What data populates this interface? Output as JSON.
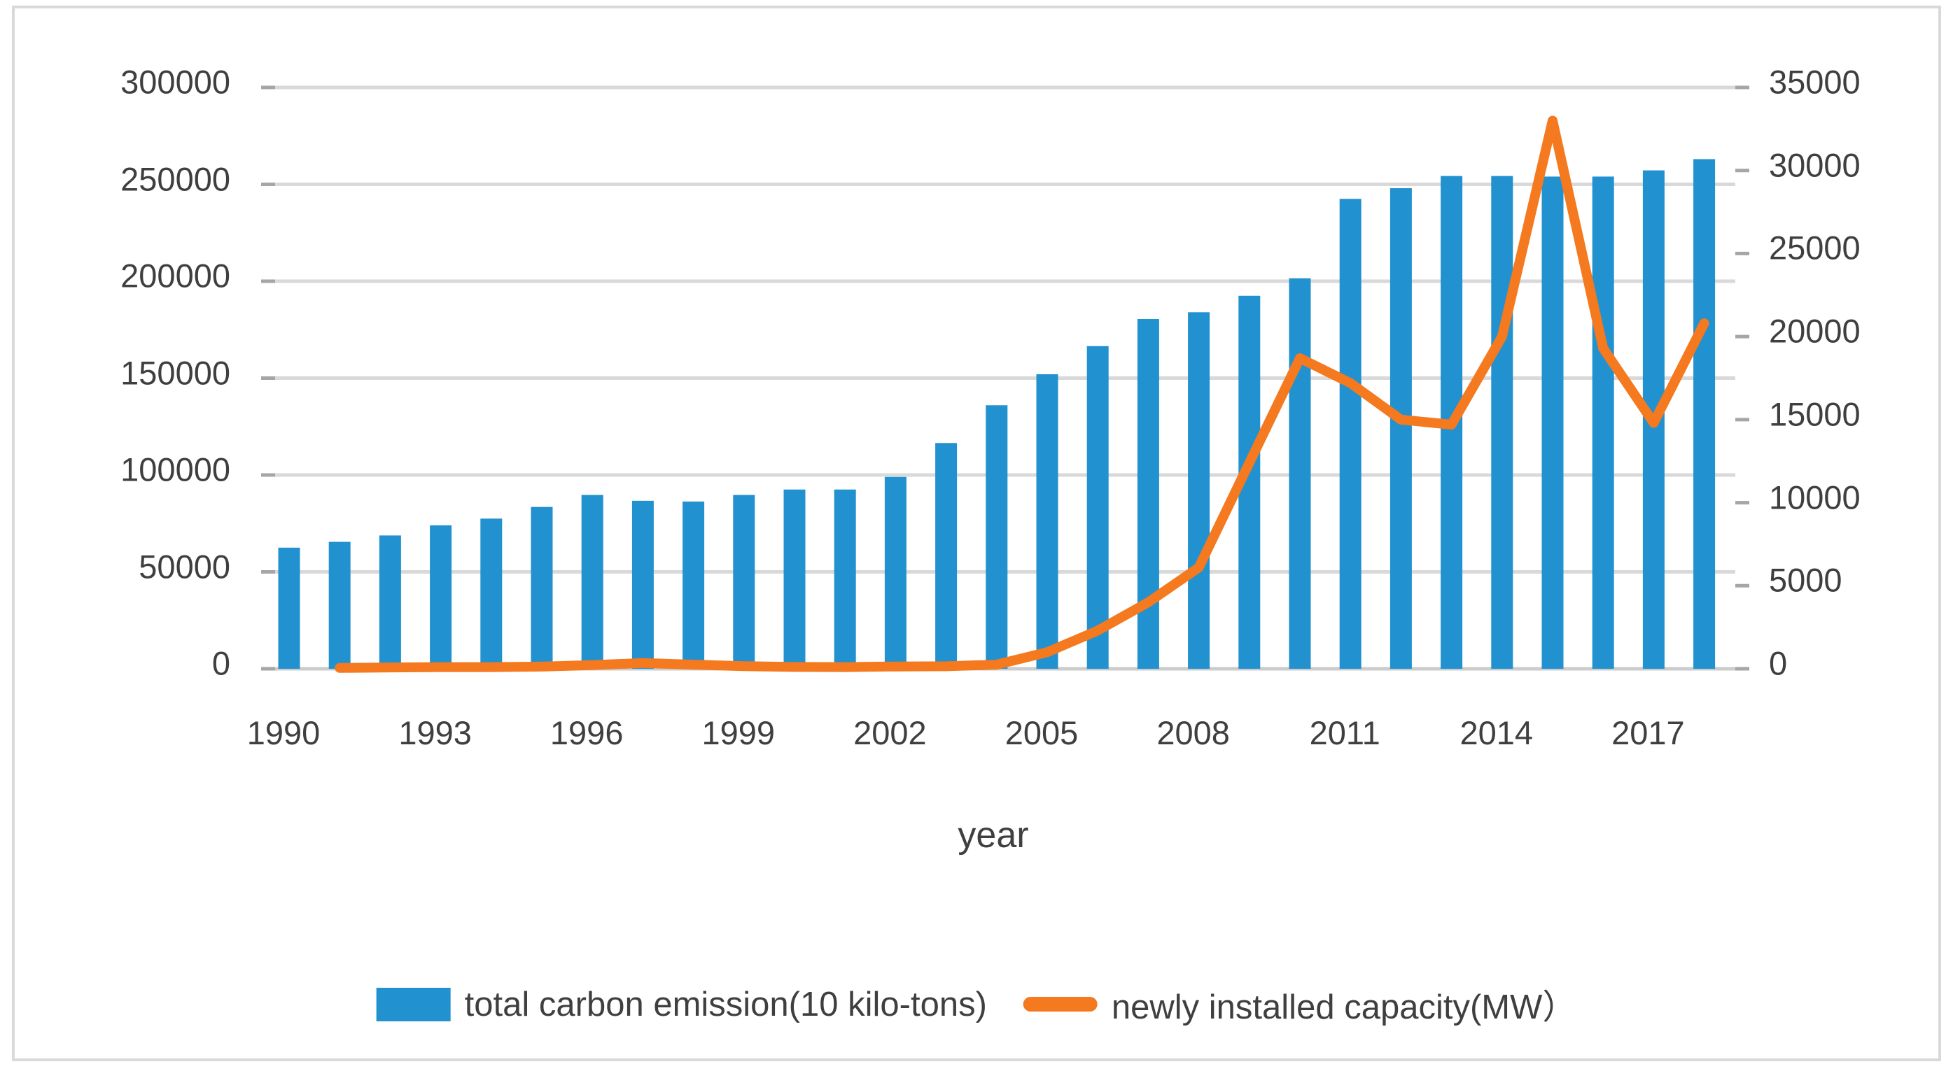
{
  "figure": {
    "x_axis_title": "year"
  },
  "legend": {
    "bar_label": "total carbon emission(10 kilo-tons)",
    "line_label": "newly installed capacity(MW）"
  },
  "colors": {
    "bar": "#2191d0",
    "line": "#f4791f",
    "gridline": "#d9d9d9",
    "baseline": "#cccccc",
    "tick": "#a6a6a6",
    "text": "#3f3f3f",
    "frame_border": "#d9d9d9"
  },
  "chart_data": {
    "type": "bar",
    "subtype": "combo-bar-line-dual-axis",
    "categories": [
      "1990",
      "1991",
      "1992",
      "1993",
      "1994",
      "1995",
      "1996",
      "1997",
      "1998",
      "1999",
      "2000",
      "2001",
      "2002",
      "2003",
      "2004",
      "2005",
      "2006",
      "2007",
      "2008",
      "2009",
      "2010",
      "2011",
      "2012",
      "2013",
      "2014",
      "2015",
      "2016",
      "2017",
      "2018"
    ],
    "x_tick_labels": [
      "1990",
      "1993",
      "1996",
      "1999",
      "2002",
      "2005",
      "2008",
      "2011",
      "2014",
      "2017"
    ],
    "xlabel": "year",
    "series": [
      {
        "name": "total carbon emission(10 kilo-tons)",
        "type": "bar",
        "axis": "left",
        "values": [
          62500,
          65500,
          68800,
          74000,
          77500,
          83500,
          89700,
          86700,
          86300,
          89700,
          92500,
          92500,
          99000,
          116500,
          136000,
          152000,
          166500,
          180500,
          184000,
          192500,
          201500,
          242500,
          248000,
          254300,
          254300,
          254000,
          254000,
          257200,
          263000
        ]
      },
      {
        "name": "newly installed capacity(MW）",
        "type": "line",
        "axis": "right",
        "values": [
          null,
          50,
          80,
          100,
          100,
          130,
          220,
          350,
          250,
          160,
          110,
          100,
          140,
          150,
          250,
          1000,
          2300,
          4000,
          6100,
          12400,
          18700,
          17200,
          15000,
          14700,
          20000,
          33000,
          19300,
          14800,
          20800
        ]
      }
    ],
    "left_axis": {
      "min": 0,
      "max": 300000,
      "step": 50000,
      "tick_labels": [
        "0",
        "50000",
        "100000",
        "150000",
        "200000",
        "250000",
        "300000"
      ]
    },
    "right_axis": {
      "min": 0,
      "max": 35000,
      "step": 5000,
      "tick_labels": [
        "0",
        "5000",
        "10000",
        "15000",
        "20000",
        "25000",
        "30000",
        "35000"
      ]
    },
    "grid": "horizontal",
    "legend_position": "bottom"
  }
}
